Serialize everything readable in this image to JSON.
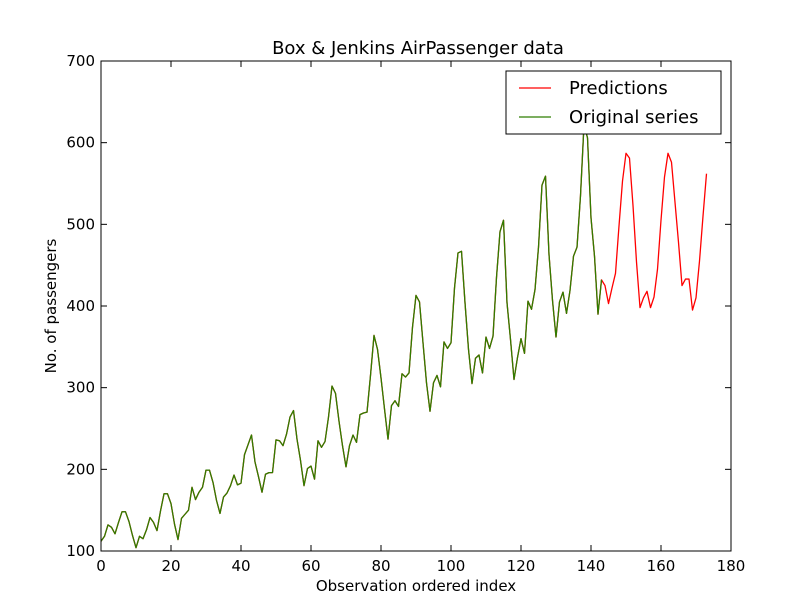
{
  "chart_data": {
    "type": "line",
    "title": "Box & Jenkins AirPassenger data",
    "xlabel": "Observation ordered index",
    "ylabel": "No. of passengers",
    "xlim": [
      0,
      180
    ],
    "ylim": [
      100,
      700
    ],
    "xticks": [
      0,
      20,
      40,
      60,
      80,
      100,
      120,
      140,
      160,
      180
    ],
    "yticks": [
      100,
      200,
      300,
      400,
      500,
      600,
      700
    ],
    "grid": false,
    "legend_position": "top-right",
    "series": [
      {
        "name": "Predictions",
        "color": "#ff0000",
        "x": [
          0,
          1,
          2,
          3,
          4,
          5,
          6,
          7,
          8,
          9,
          10,
          11,
          12,
          13,
          14,
          15,
          16,
          17,
          18,
          19,
          20,
          21,
          22,
          23,
          24,
          25,
          26,
          27,
          28,
          29,
          30,
          31,
          32,
          33,
          34,
          35,
          36,
          37,
          38,
          39,
          40,
          41,
          42,
          43,
          44,
          45,
          46,
          47,
          48,
          49,
          50,
          51,
          52,
          53,
          54,
          55,
          56,
          57,
          58,
          59,
          60,
          61,
          62,
          63,
          64,
          65,
          66,
          67,
          68,
          69,
          70,
          71,
          72,
          73,
          74,
          75,
          76,
          77,
          78,
          79,
          80,
          81,
          82,
          83,
          84,
          85,
          86,
          87,
          88,
          89,
          90,
          91,
          92,
          93,
          94,
          95,
          96,
          97,
          98,
          99,
          100,
          101,
          102,
          103,
          104,
          105,
          106,
          107,
          108,
          109,
          110,
          111,
          112,
          113,
          114,
          115,
          116,
          117,
          118,
          119,
          120,
          121,
          122,
          123,
          124,
          125,
          126,
          127,
          128,
          129,
          130,
          131,
          132,
          133,
          134,
          135,
          136,
          137,
          138,
          139,
          140,
          141,
          142,
          143,
          144,
          145,
          146,
          147,
          148,
          149,
          150,
          151,
          152,
          153,
          154,
          155,
          156,
          157,
          158,
          159,
          160,
          161,
          162,
          163,
          164,
          165,
          166,
          167,
          168,
          169,
          170,
          171,
          172,
          173
        ],
        "values": [
          112,
          118,
          132,
          129,
          121,
          135,
          148,
          148,
          136,
          119,
          104,
          118,
          115,
          126,
          141,
          135,
          125,
          149,
          170,
          170,
          158,
          133,
          114,
          140,
          145,
          150,
          178,
          163,
          172,
          178,
          199,
          199,
          184,
          162,
          146,
          166,
          171,
          180,
          193,
          181,
          183,
          218,
          230,
          242,
          209,
          191,
          172,
          194,
          196,
          196,
          236,
          235,
          229,
          243,
          264,
          272,
          237,
          211,
          180,
          201,
          204,
          188,
          235,
          227,
          234,
          264,
          302,
          293,
          259,
          229,
          203,
          229,
          242,
          233,
          267,
          269,
          270,
          315,
          364,
          347,
          312,
          274,
          237,
          278,
          284,
          277,
          317,
          313,
          318,
          374,
          413,
          405,
          355,
          306,
          271,
          306,
          315,
          301,
          356,
          348,
          355,
          422,
          465,
          467,
          404,
          347,
          305,
          336,
          340,
          318,
          362,
          348,
          363,
          435,
          491,
          505,
          404,
          359,
          310,
          337,
          360,
          342,
          406,
          396,
          420,
          472,
          548,
          559,
          463,
          407,
          362,
          405,
          417,
          391,
          419,
          461,
          472,
          535,
          622,
          606,
          508,
          461,
          390,
          432,
          425,
          403,
          422,
          440,
          498,
          553,
          587,
          581,
          523,
          454,
          398,
          410,
          418,
          398,
          411,
          445,
          505,
          558,
          587,
          576,
          527,
          478,
          425,
          433,
          433,
          395,
          410,
          455,
          510,
          562
        ]
      },
      {
        "name": "Original series",
        "color": "#2e7d00",
        "x": [
          0,
          1,
          2,
          3,
          4,
          5,
          6,
          7,
          8,
          9,
          10,
          11,
          12,
          13,
          14,
          15,
          16,
          17,
          18,
          19,
          20,
          21,
          22,
          23,
          24,
          25,
          26,
          27,
          28,
          29,
          30,
          31,
          32,
          33,
          34,
          35,
          36,
          37,
          38,
          39,
          40,
          41,
          42,
          43,
          44,
          45,
          46,
          47,
          48,
          49,
          50,
          51,
          52,
          53,
          54,
          55,
          56,
          57,
          58,
          59,
          60,
          61,
          62,
          63,
          64,
          65,
          66,
          67,
          68,
          69,
          70,
          71,
          72,
          73,
          74,
          75,
          76,
          77,
          78,
          79,
          80,
          81,
          82,
          83,
          84,
          85,
          86,
          87,
          88,
          89,
          90,
          91,
          92,
          93,
          94,
          95,
          96,
          97,
          98,
          99,
          100,
          101,
          102,
          103,
          104,
          105,
          106,
          107,
          108,
          109,
          110,
          111,
          112,
          113,
          114,
          115,
          116,
          117,
          118,
          119,
          120,
          121,
          122,
          123,
          124,
          125,
          126,
          127,
          128,
          129,
          130,
          131,
          132,
          133,
          134,
          135,
          136,
          137,
          138,
          139,
          140,
          141,
          142,
          143
        ],
        "values": [
          112,
          118,
          132,
          129,
          121,
          135,
          148,
          148,
          136,
          119,
          104,
          118,
          115,
          126,
          141,
          135,
          125,
          149,
          170,
          170,
          158,
          133,
          114,
          140,
          145,
          150,
          178,
          163,
          172,
          178,
          199,
          199,
          184,
          162,
          146,
          166,
          171,
          180,
          193,
          181,
          183,
          218,
          230,
          242,
          209,
          191,
          172,
          194,
          196,
          196,
          236,
          235,
          229,
          243,
          264,
          272,
          237,
          211,
          180,
          201,
          204,
          188,
          235,
          227,
          234,
          264,
          302,
          293,
          259,
          229,
          203,
          229,
          242,
          233,
          267,
          269,
          270,
          315,
          364,
          347,
          312,
          274,
          237,
          278,
          284,
          277,
          317,
          313,
          318,
          374,
          413,
          405,
          355,
          306,
          271,
          306,
          315,
          301,
          356,
          348,
          355,
          422,
          465,
          467,
          404,
          347,
          305,
          336,
          340,
          318,
          362,
          348,
          363,
          435,
          491,
          505,
          404,
          359,
          310,
          337,
          360,
          342,
          406,
          396,
          420,
          472,
          548,
          559,
          463,
          407,
          362,
          405,
          417,
          391,
          419,
          461,
          472,
          535,
          622,
          606,
          508,
          461,
          390,
          432
        ]
      }
    ]
  }
}
